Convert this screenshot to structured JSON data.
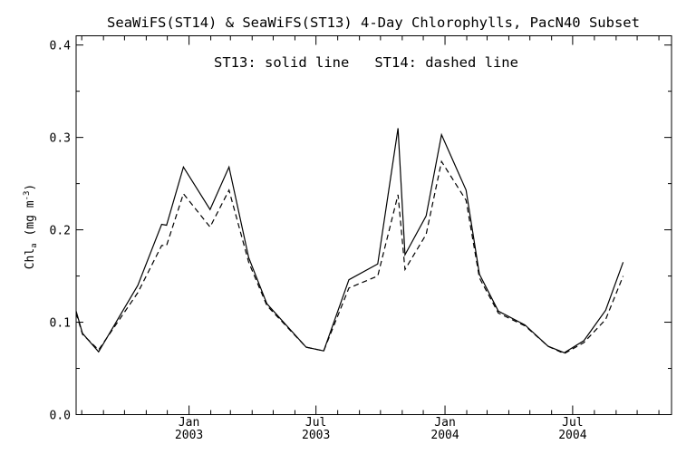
{
  "chart_data": {
    "type": "line",
    "title": "SeaWiFS(ST14) & SeaWiFS(ST13) 4-Day Chlorophylls, PacN40 Subset",
    "annotation": "ST13: solid line   ST14: dashed line",
    "ylabel": "Chl",
    "ylabel_sub": "a",
    "ylabel_unit_open": " (mg m",
    "ylabel_unit_sup": "-3",
    "ylabel_unit_close": ")",
    "ylim": [
      0.0,
      0.41
    ],
    "yticks": [
      0.0,
      0.1,
      0.2,
      0.3,
      0.4
    ],
    "ytick_labels": [
      "0.0",
      "0.1",
      "0.2",
      "0.3",
      "0.4"
    ],
    "xlim": [
      "2002-07-24",
      "2004-11-19"
    ],
    "xticks": [
      {
        "date": "2003-01-01",
        "month": "Jan",
        "year": "2003"
      },
      {
        "date": "2003-07-01",
        "month": "Jul",
        "year": "2003"
      },
      {
        "date": "2004-01-01",
        "month": "Jan",
        "year": "2004"
      },
      {
        "date": "2004-07-01",
        "month": "Jul",
        "year": "2004"
      }
    ],
    "minor_ticks": [
      "2002-08-01",
      "2002-09-01",
      "2002-10-01",
      "2002-11-01",
      "2002-12-01",
      "2003-02-01",
      "2003-03-01",
      "2003-04-01",
      "2003-05-01",
      "2003-06-01",
      "2003-08-01",
      "2003-09-01",
      "2003-10-01",
      "2003-11-01",
      "2003-12-01",
      "2004-02-01",
      "2004-03-01",
      "2004-04-01",
      "2004-05-01",
      "2004-06-01",
      "2004-08-01",
      "2004-09-01",
      "2004-10-01",
      "2004-11-01"
    ],
    "grid": false,
    "series": [
      {
        "name": "ST13",
        "style": "solid",
        "color": "#000000",
        "points": [
          [
            "2002-07-24",
            0.112
          ],
          [
            "2002-08-02",
            0.088
          ],
          [
            "2002-08-25",
            0.068
          ],
          [
            "2002-10-20",
            0.14
          ],
          [
            "2002-11-23",
            0.206
          ],
          [
            "2002-11-30",
            0.205
          ],
          [
            "2002-12-24",
            0.268
          ],
          [
            "2003-01-31",
            0.222
          ],
          [
            "2003-02-27",
            0.268
          ],
          [
            "2003-03-27",
            0.17
          ],
          [
            "2003-04-22",
            0.12
          ],
          [
            "2003-06-17",
            0.073
          ],
          [
            "2003-07-12",
            0.069
          ],
          [
            "2003-08-17",
            0.146
          ],
          [
            "2003-09-27",
            0.163
          ],
          [
            "2003-10-26",
            0.31
          ],
          [
            "2003-11-05",
            0.173
          ],
          [
            "2003-12-05",
            0.215
          ],
          [
            "2003-12-27",
            0.303
          ],
          [
            "2004-01-31",
            0.243
          ],
          [
            "2004-02-19",
            0.152
          ],
          [
            "2004-03-17",
            0.112
          ],
          [
            "2004-04-24",
            0.097
          ],
          [
            "2004-05-27",
            0.074
          ],
          [
            "2004-06-19",
            0.067
          ],
          [
            "2004-07-17",
            0.08
          ],
          [
            "2004-08-17",
            0.113
          ],
          [
            "2004-09-11",
            0.165
          ]
        ]
      },
      {
        "name": "ST14",
        "style": "dashed",
        "color": "#000000",
        "points": [
          [
            "2002-07-24",
            0.11
          ],
          [
            "2002-08-02",
            0.087
          ],
          [
            "2002-08-25",
            0.07
          ],
          [
            "2002-10-20",
            0.132
          ],
          [
            "2002-11-23",
            0.183
          ],
          [
            "2002-11-30",
            0.183
          ],
          [
            "2002-12-24",
            0.239
          ],
          [
            "2003-01-31",
            0.203
          ],
          [
            "2003-02-27",
            0.243
          ],
          [
            "2003-03-27",
            0.165
          ],
          [
            "2003-04-22",
            0.118
          ],
          [
            "2003-06-17",
            0.073
          ],
          [
            "2003-07-12",
            0.069
          ],
          [
            "2003-08-17",
            0.137
          ],
          [
            "2003-09-27",
            0.15
          ],
          [
            "2003-10-26",
            0.238
          ],
          [
            "2003-11-05",
            0.157
          ],
          [
            "2003-12-05",
            0.195
          ],
          [
            "2003-12-27",
            0.274
          ],
          [
            "2004-01-31",
            0.232
          ],
          [
            "2004-02-19",
            0.148
          ],
          [
            "2004-03-17",
            0.11
          ],
          [
            "2004-04-24",
            0.096
          ],
          [
            "2004-05-27",
            0.074
          ],
          [
            "2004-06-19",
            0.066
          ],
          [
            "2004-07-17",
            0.078
          ],
          [
            "2004-08-17",
            0.103
          ],
          [
            "2004-09-11",
            0.15
          ]
        ]
      }
    ]
  }
}
